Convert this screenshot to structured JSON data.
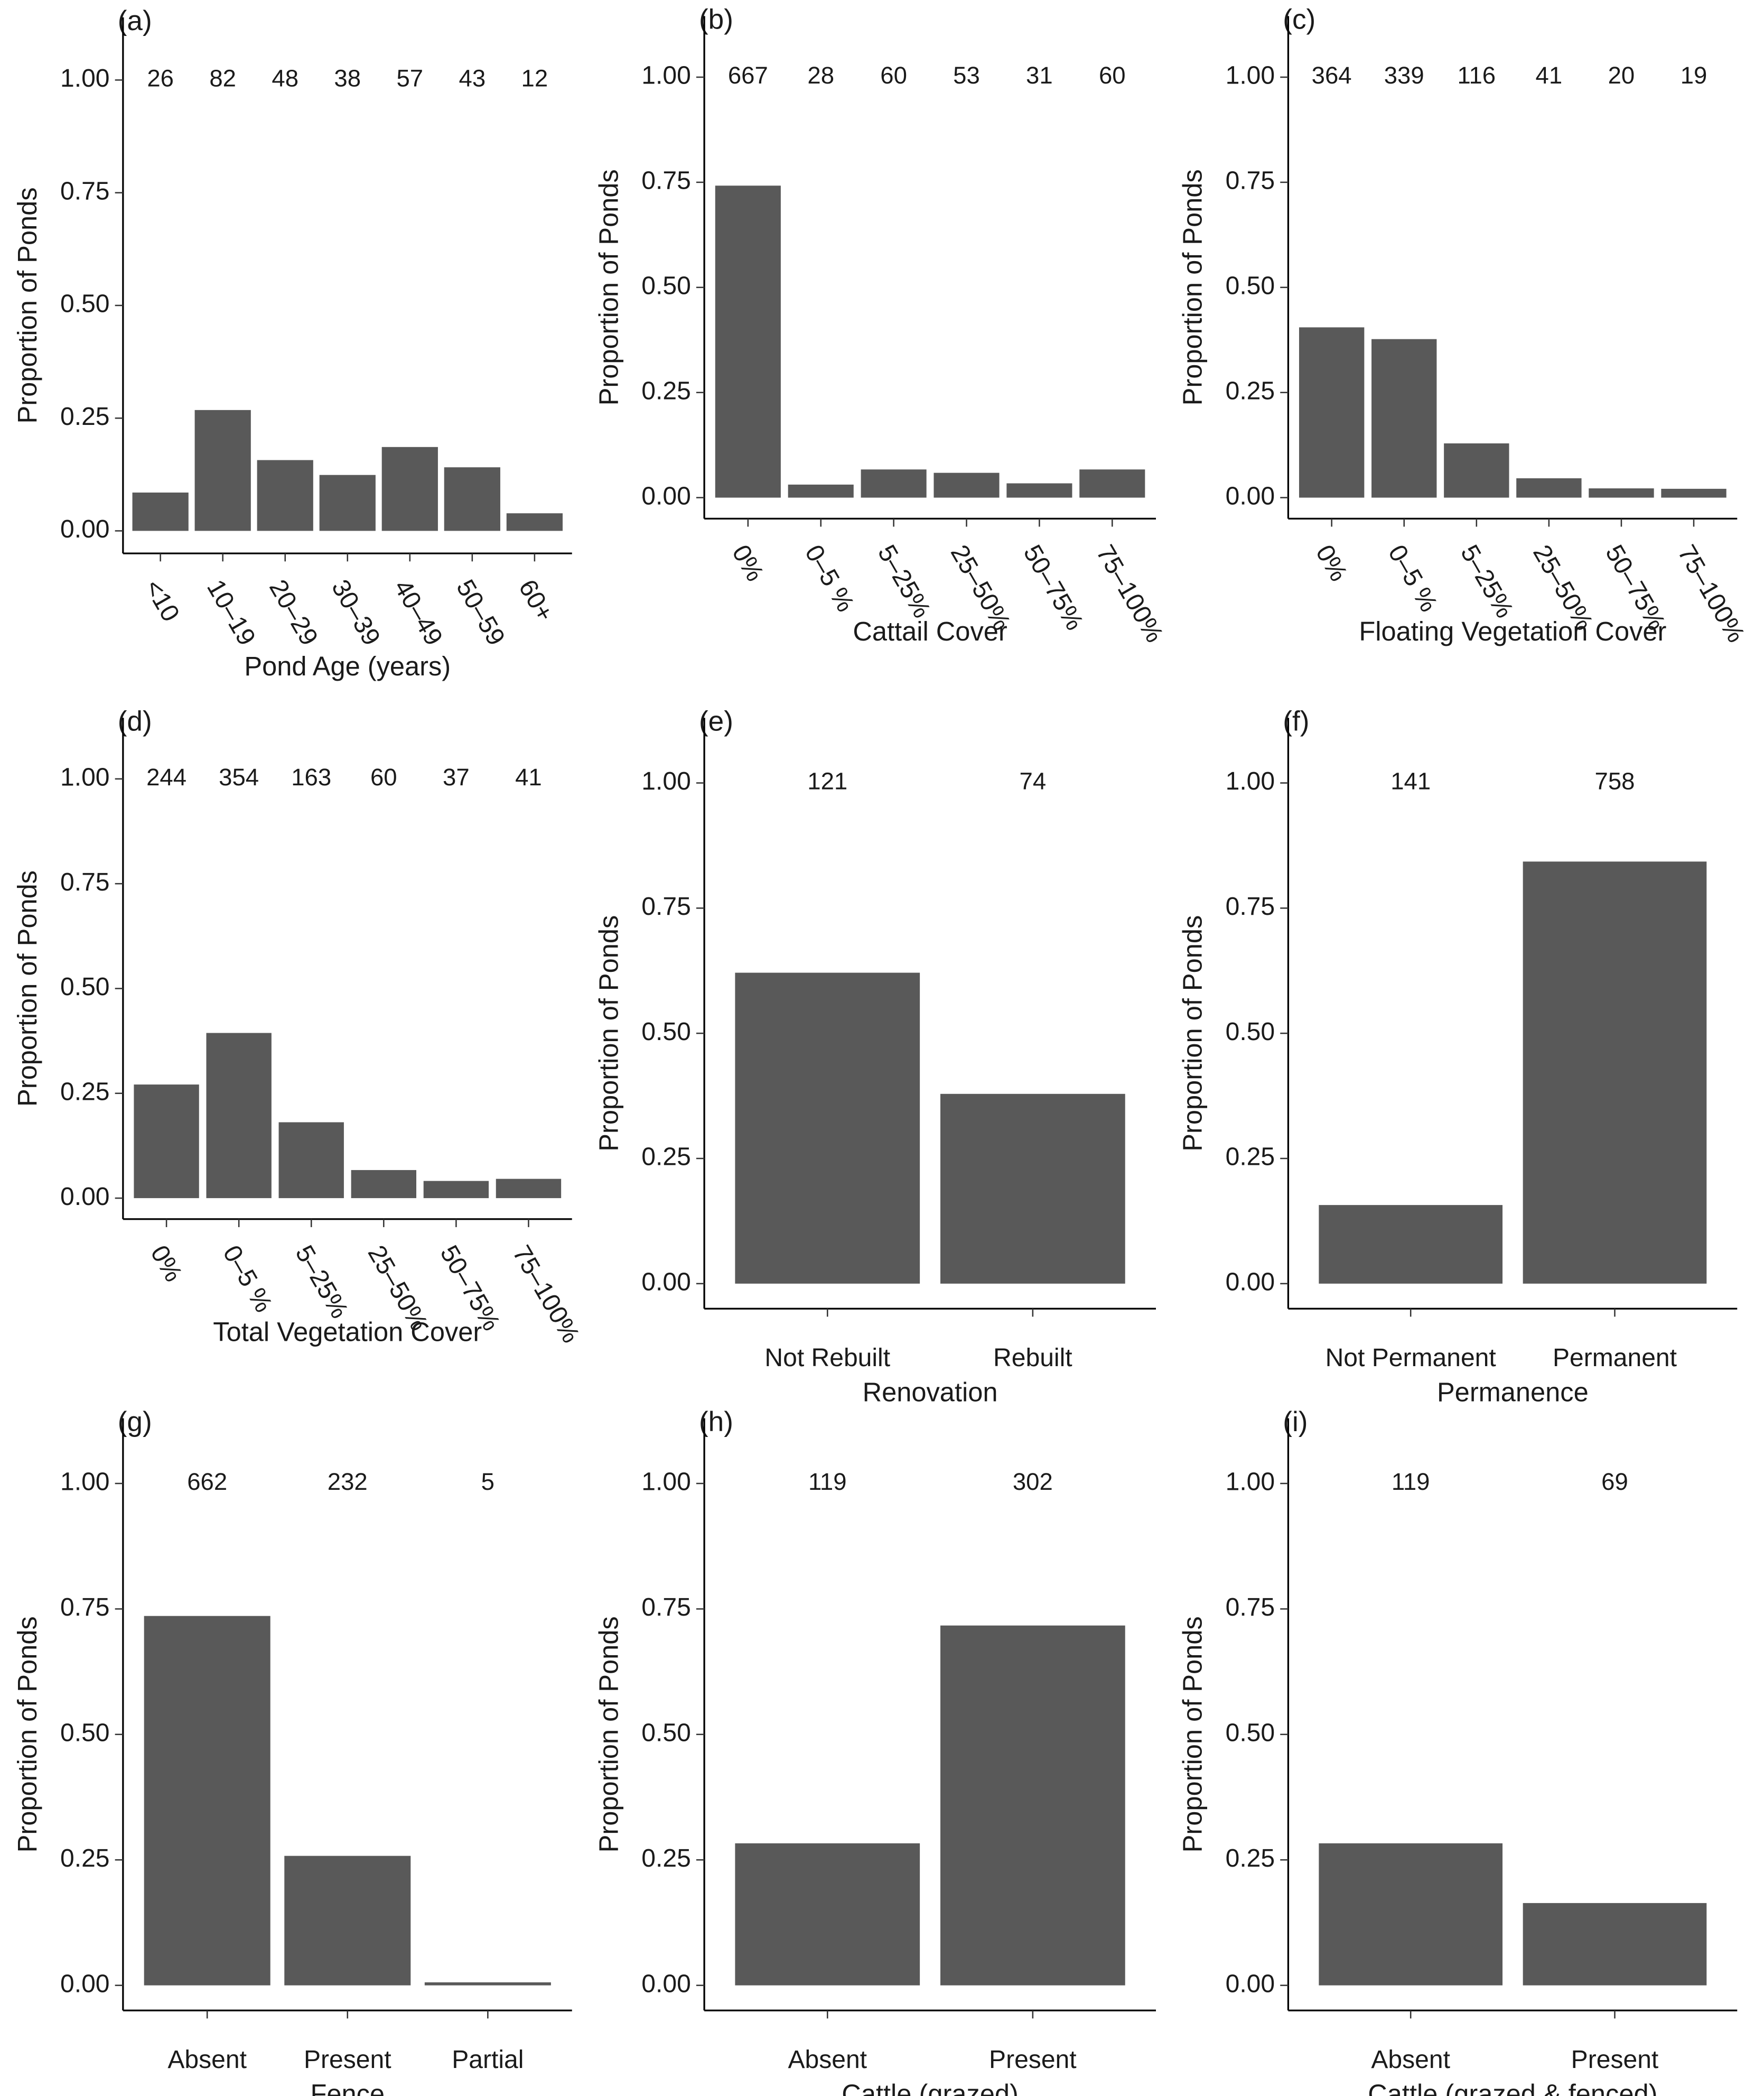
{
  "chart_data": [
    {
      "type": "bar",
      "title": "(a)",
      "x_label": "Pond Age (years)",
      "y_label": "Proportion of Ponds",
      "rotate_labels": true,
      "categories": [
        "<10",
        "10–19",
        "20–29",
        "30–39",
        "40–49",
        "50–59",
        "60+"
      ],
      "values": [
        0.085,
        0.268,
        0.157,
        0.124,
        0.186,
        0.141,
        0.039
      ],
      "counts": [
        26,
        82,
        48,
        38,
        57,
        43,
        12
      ],
      "color": "#595959",
      "ylim": [
        -0.05,
        1.05
      ],
      "yticks": [
        {
          "value": 0,
          "label": "0.00"
        },
        {
          "value": 0.25,
          "label": "0.25"
        },
        {
          "value": 0.5,
          "label": "0.50"
        },
        {
          "value": 0.75,
          "label": "0.75"
        },
        {
          "value": 1,
          "label": "1.00"
        }
      ]
    },
    {
      "type": "bar",
      "title": "(b)",
      "x_label": "Cattail Cover",
      "y_label": "Proportion of Ponds",
      "rotate_labels": true,
      "categories": [
        "0%",
        "0–5 %",
        "5–25%",
        "25–50%",
        "50–75%",
        "75–100%"
      ],
      "values": [
        0.742,
        0.031,
        0.067,
        0.059,
        0.034,
        0.067
      ],
      "counts": [
        667,
        28,
        60,
        53,
        31,
        60
      ],
      "color": "#595959",
      "ylim": [
        -0.05,
        1.05
      ],
      "yticks": [
        {
          "value": 0,
          "label": "0.00"
        },
        {
          "value": 0.25,
          "label": "0.25"
        },
        {
          "value": 0.5,
          "label": "0.50"
        },
        {
          "value": 0.75,
          "label": "0.75"
        },
        {
          "value": 1,
          "label": "1.00"
        }
      ]
    },
    {
      "type": "bar",
      "title": "(c)",
      "x_label": "Floating Vegetation Cover",
      "y_label": "Proportion of Ponds",
      "rotate_labels": true,
      "categories": [
        "0%",
        "0–5 %",
        "5–25%",
        "25–50%",
        "50–75%",
        "75–100%"
      ],
      "values": [
        0.405,
        0.377,
        0.129,
        0.046,
        0.022,
        0.021
      ],
      "counts": [
        364,
        339,
        116,
        41,
        20,
        19
      ],
      "color": "#595959",
      "ylim": [
        -0.05,
        1.05
      ],
      "yticks": [
        {
          "value": 0,
          "label": "0.00"
        },
        {
          "value": 0.25,
          "label": "0.25"
        },
        {
          "value": 0.5,
          "label": "0.50"
        },
        {
          "value": 0.75,
          "label": "0.75"
        },
        {
          "value": 1,
          "label": "1.00"
        }
      ]
    },
    {
      "type": "bar",
      "title": "(d)",
      "x_label": "Total Vegetation Cover",
      "y_label": "Proportion of Ponds",
      "rotate_labels": true,
      "categories": [
        "0%",
        "0–5 %",
        "5–25%",
        "25–50%",
        "50–75%",
        "75–100%"
      ],
      "values": [
        0.271,
        0.394,
        0.181,
        0.067,
        0.041,
        0.046
      ],
      "counts": [
        244,
        354,
        163,
        60,
        37,
        41
      ],
      "color": "#595959",
      "ylim": [
        -0.05,
        1.05
      ],
      "yticks": [
        {
          "value": 0,
          "label": "0.00"
        },
        {
          "value": 0.25,
          "label": "0.25"
        },
        {
          "value": 0.5,
          "label": "0.50"
        },
        {
          "value": 0.75,
          "label": "0.75"
        },
        {
          "value": 1,
          "label": "1.00"
        }
      ]
    },
    {
      "type": "bar",
      "title": "(e)",
      "x_label": "Renovation",
      "y_label": "Proportion of Ponds",
      "rotate_labels": false,
      "categories": [
        "Not Rebuilt",
        "Rebuilt"
      ],
      "values": [
        0.621,
        0.379
      ],
      "counts": [
        121,
        74
      ],
      "color": "#595959",
      "ylim": [
        -0.05,
        1.05
      ],
      "yticks": [
        {
          "value": 0,
          "label": "0.00"
        },
        {
          "value": 0.25,
          "label": "0.25"
        },
        {
          "value": 0.5,
          "label": "0.50"
        },
        {
          "value": 0.75,
          "label": "0.75"
        },
        {
          "value": 1,
          "label": "1.00"
        }
      ]
    },
    {
      "type": "bar",
      "title": "(f)",
      "x_label": "Permanence",
      "y_label": "Proportion of Ponds",
      "rotate_labels": false,
      "categories": [
        "Not Permanent",
        "Permanent"
      ],
      "values": [
        0.157,
        0.843
      ],
      "counts": [
        141,
        758
      ],
      "color": "#595959",
      "ylim": [
        -0.05,
        1.05
      ],
      "yticks": [
        {
          "value": 0,
          "label": "0.00"
        },
        {
          "value": 0.25,
          "label": "0.25"
        },
        {
          "value": 0.5,
          "label": "0.50"
        },
        {
          "value": 0.75,
          "label": "0.75"
        },
        {
          "value": 1,
          "label": "1.00"
        }
      ]
    },
    {
      "type": "bar",
      "title": "(g)",
      "x_label": "Fence",
      "y_label": "Proportion of Ponds",
      "rotate_labels": false,
      "categories": [
        "Absent",
        "Present",
        "Partial"
      ],
      "values": [
        0.736,
        0.258,
        0.006
      ],
      "counts": [
        662,
        232,
        5
      ],
      "color": "#595959",
      "ylim": [
        -0.05,
        1.05
      ],
      "yticks": [
        {
          "value": 0,
          "label": "0.00"
        },
        {
          "value": 0.25,
          "label": "0.25"
        },
        {
          "value": 0.5,
          "label": "0.50"
        },
        {
          "value": 0.75,
          "label": "0.75"
        },
        {
          "value": 1,
          "label": "1.00"
        }
      ]
    },
    {
      "type": "bar",
      "title": "(h)",
      "x_label": "Cattle (grazed)",
      "y_label": "Proportion of Ponds",
      "rotate_labels": false,
      "categories": [
        "Absent",
        "Present"
      ],
      "values": [
        0.283,
        0.717
      ],
      "counts": [
        119,
        302
      ],
      "color": "#595959",
      "ylim": [
        -0.05,
        1.05
      ],
      "yticks": [
        {
          "value": 0,
          "label": "0.00"
        },
        {
          "value": 0.25,
          "label": "0.25"
        },
        {
          "value": 0.5,
          "label": "0.50"
        },
        {
          "value": 0.75,
          "label": "0.75"
        },
        {
          "value": 1,
          "label": "1.00"
        }
      ]
    },
    {
      "type": "bar",
      "title": "(i)",
      "x_label": "Cattle (grazed & fenced)",
      "y_label": "Proportion of Ponds",
      "rotate_labels": false,
      "categories": [
        "Absent",
        "Present"
      ],
      "values": [
        0.283,
        0.164
      ],
      "counts": [
        119,
        69
      ],
      "color": "#595959",
      "ylim": [
        -0.05,
        1.05
      ],
      "yticks": [
        {
          "value": 0,
          "label": "0.00"
        },
        {
          "value": 0.25,
          "label": "0.25"
        },
        {
          "value": 0.5,
          "label": "0.50"
        },
        {
          "value": 0.75,
          "label": "0.75"
        },
        {
          "value": 1,
          "label": "1.00"
        }
      ]
    }
  ]
}
